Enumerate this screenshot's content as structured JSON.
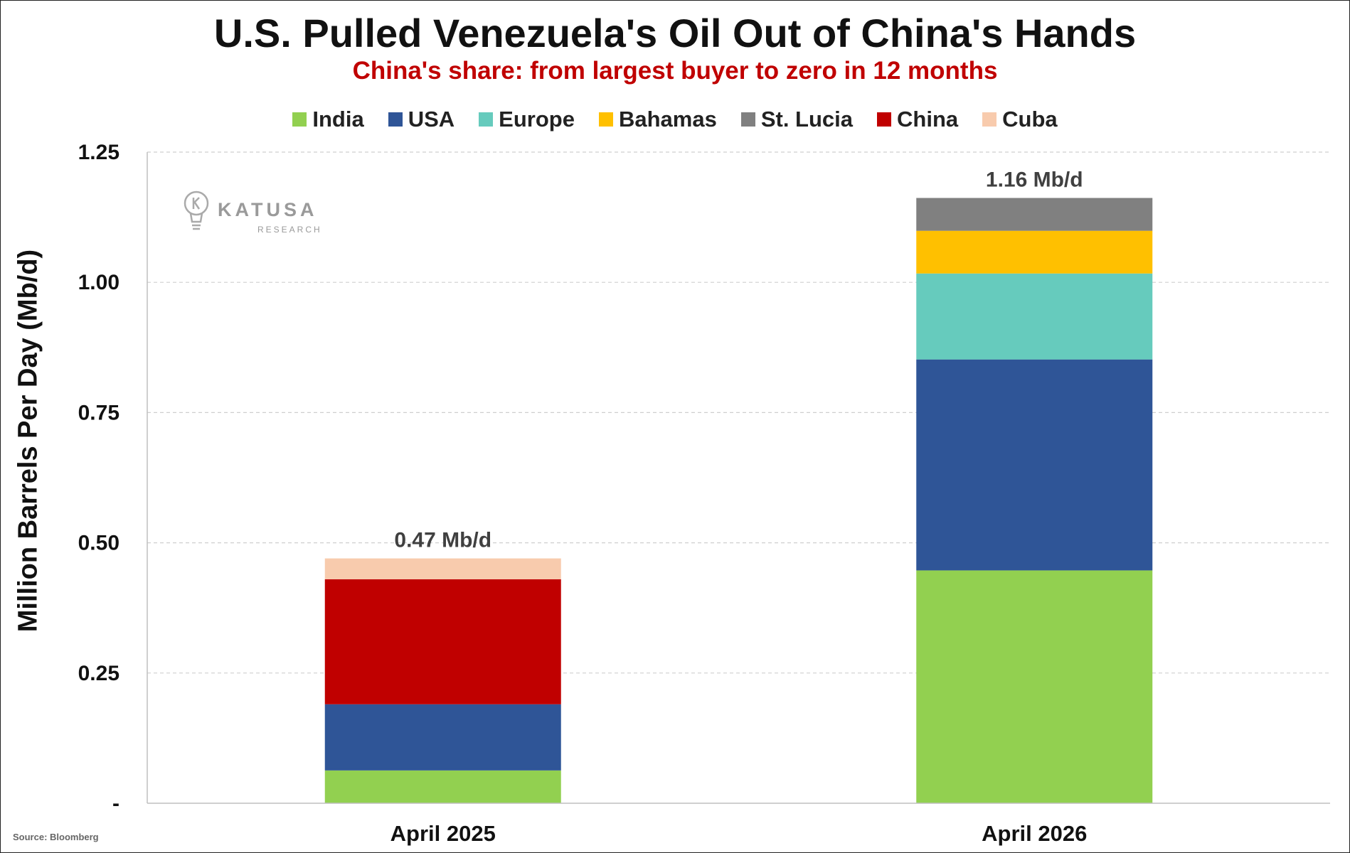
{
  "chart_data": {
    "type": "bar",
    "stacked": true,
    "title": "U.S. Pulled Venezuela's Oil Out of China's Hands",
    "subtitle": "China's share: from largest buyer to zero in 12 months",
    "xlabel": "",
    "ylabel": "Million Barrels Per Day (Mb/d)",
    "ylim": [
      0,
      1.25
    ],
    "yticks": [
      0,
      0.25,
      0.5,
      0.75,
      1.0,
      1.25
    ],
    "ytick_labels": [
      "-",
      "0.25",
      "0.50",
      "0.75",
      "1.00",
      "1.25"
    ],
    "grid": true,
    "legend_position": "top-center",
    "categories": [
      "April 2025",
      "April 2026"
    ],
    "totals_labels": [
      "0.47 Mb/d",
      "1.16 Mb/d"
    ],
    "series": [
      {
        "name": "India",
        "color": "#92d050",
        "values": [
          0.063,
          0.447
        ]
      },
      {
        "name": "USA",
        "color": "#2f5597",
        "values": [
          0.127,
          0.405
        ]
      },
      {
        "name": "Europe",
        "color": "#66cbbd",
        "values": [
          0,
          0.165
        ]
      },
      {
        "name": "Bahamas",
        "color": "#ffc000",
        "values": [
          0,
          0.082
        ]
      },
      {
        "name": "St. Lucia",
        "color": "#808080",
        "values": [
          0,
          0.063
        ]
      },
      {
        "name": "China",
        "color": "#c00000",
        "values": [
          0.24,
          0
        ]
      },
      {
        "name": "Cuba",
        "color": "#f8cbad",
        "values": [
          0.04,
          0
        ]
      }
    ]
  },
  "logo": {
    "name": "KATUSA",
    "tagline": "RESEARCH"
  },
  "source": "Source: Bloomberg"
}
